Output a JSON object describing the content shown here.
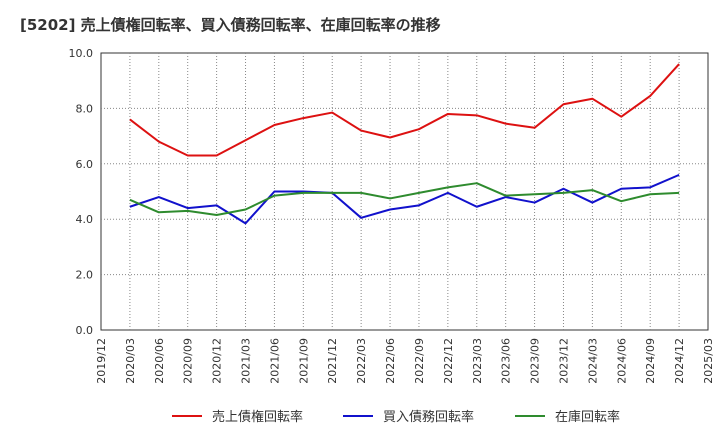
{
  "chart_data": {
    "type": "line",
    "title": "[5202]  売上債権回転率、買入債務回転率、在庫回転率の推移",
    "xlabel": "",
    "ylabel": "",
    "ylim": [
      0,
      10
    ],
    "yticks": [
      "0.0",
      "2.0",
      "4.0",
      "6.0",
      "8.0",
      "10.0"
    ],
    "x_ticks": [
      "2019/12",
      "2020/03",
      "2020/06",
      "2020/09",
      "2020/12",
      "2021/03",
      "2021/06",
      "2021/09",
      "2021/12",
      "2022/03",
      "2022/06",
      "2022/09",
      "2022/12",
      "2023/03",
      "2023/06",
      "2023/09",
      "2023/12",
      "2024/03",
      "2024/06",
      "2024/09",
      "2024/12",
      "2025/03"
    ],
    "x": [
      "2020/03",
      "2020/06",
      "2020/09",
      "2020/12",
      "2021/03",
      "2021/06",
      "2021/09",
      "2021/12",
      "2022/03",
      "2022/06",
      "2022/09",
      "2022/12",
      "2023/03",
      "2023/06",
      "2023/09",
      "2023/12",
      "2024/03",
      "2024/06",
      "2024/09",
      "2024/12"
    ],
    "grid": true,
    "legend_position": "bottom",
    "series": [
      {
        "name": "売上債権回転率",
        "color": "#dd1111",
        "values": [
          7.6,
          6.8,
          6.3,
          6.3,
          6.85,
          7.4,
          7.65,
          7.85,
          7.2,
          6.95,
          7.25,
          7.8,
          7.75,
          7.45,
          7.3,
          8.15,
          8.35,
          7.7,
          8.45,
          9.6
        ]
      },
      {
        "name": "買入債務回転率",
        "color": "#1111cc",
        "values": [
          4.45,
          4.8,
          4.4,
          4.5,
          3.85,
          5.0,
          5.0,
          4.95,
          4.05,
          4.35,
          4.5,
          4.95,
          4.45,
          4.8,
          4.6,
          5.1,
          4.6,
          5.1,
          5.15,
          5.6
        ]
      },
      {
        "name": "在庫回転率",
        "color": "#2e8b2e",
        "values": [
          4.7,
          4.25,
          4.3,
          4.15,
          4.35,
          4.85,
          4.95,
          4.95,
          4.95,
          4.75,
          4.95,
          5.15,
          5.3,
          4.85,
          4.9,
          4.95,
          5.05,
          4.65,
          4.9,
          4.95
        ]
      }
    ]
  }
}
